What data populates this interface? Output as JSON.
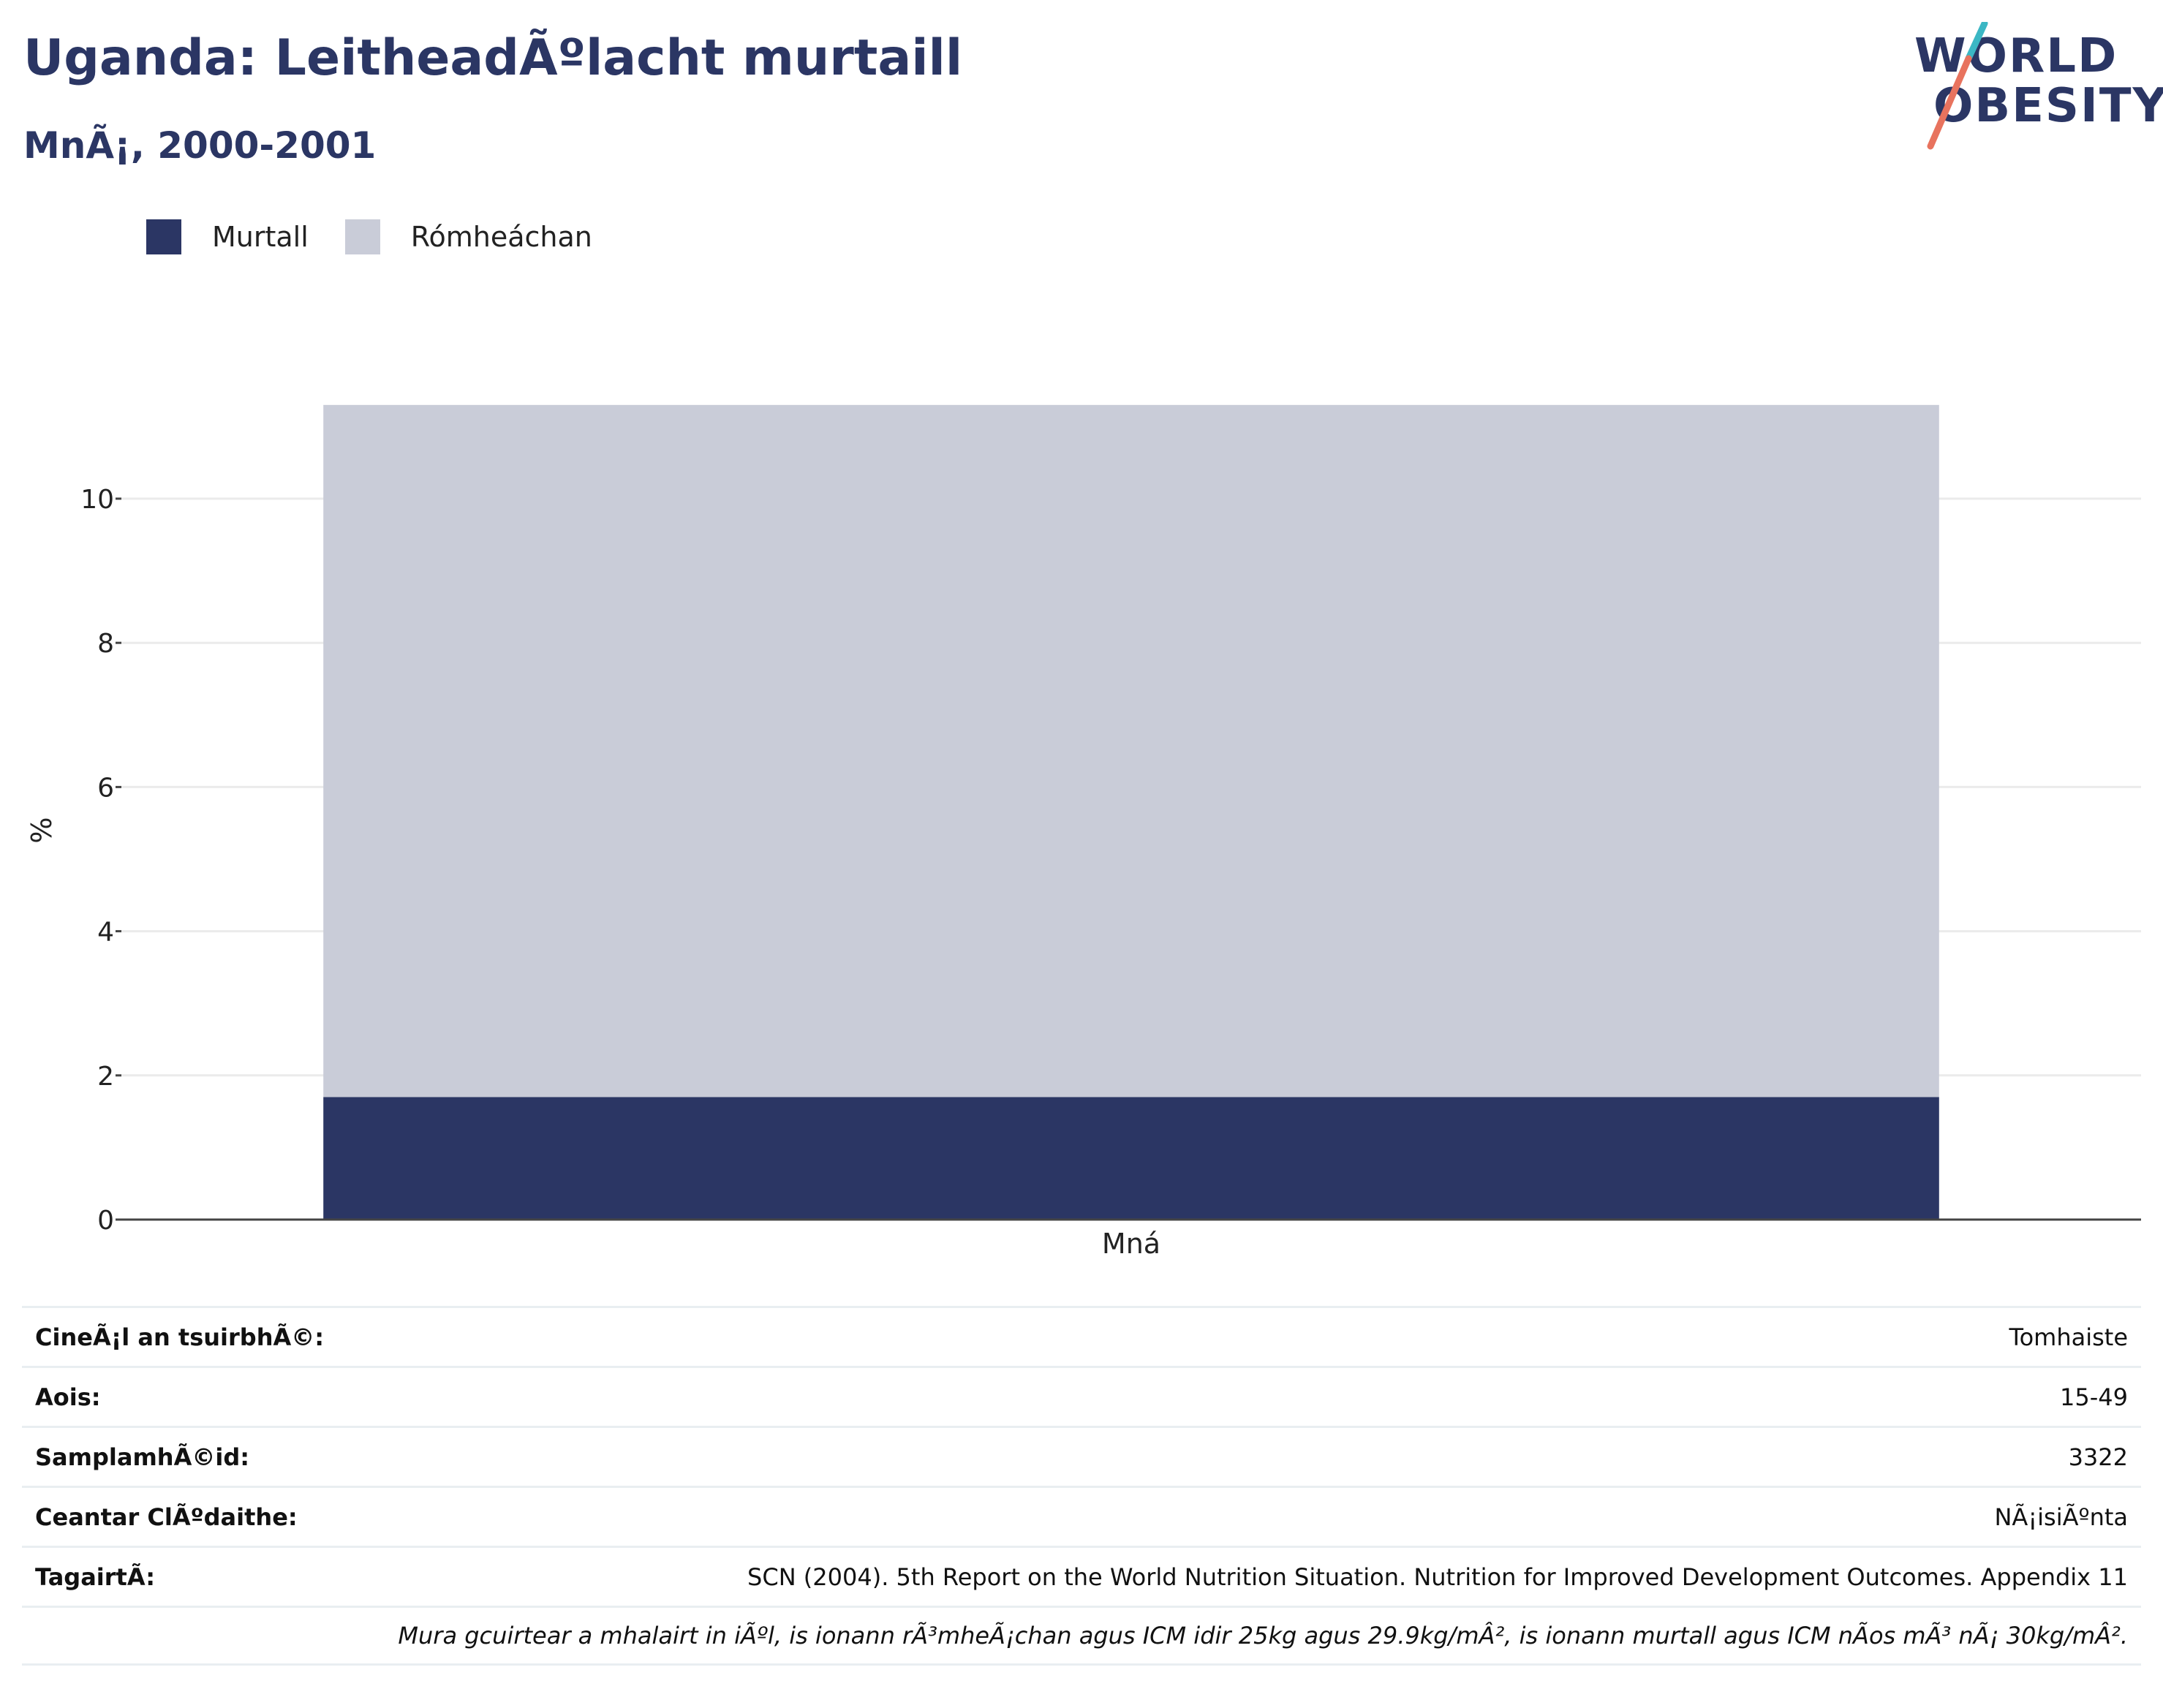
{
  "header": {
    "title": "Uganda: LeitheadÃºlacht murtaill",
    "subtitle": "MnÃ¡, 2000-2001"
  },
  "logo": {
    "line1": "WORLD",
    "line2": "OBESITY"
  },
  "colors": {
    "obese": "#2b3664",
    "overweight": "#c9ccd8",
    "text": "#2b3664"
  },
  "chart_data": {
    "type": "bar",
    "stacked": true,
    "categories": [
      "Mná"
    ],
    "series": [
      {
        "name": "Murtall",
        "values": [
          1.7
        ],
        "color": "#2b3664"
      },
      {
        "name": "Rómheáchan",
        "values": [
          9.6
        ],
        "color": "#c9ccd8"
      }
    ],
    "ylabel": "%",
    "xlabel": "",
    "ylim": [
      0,
      11.3
    ],
    "yticks": [
      0,
      2,
      4,
      6,
      8,
      10
    ],
    "grid": true,
    "legend": "top-left"
  },
  "info": {
    "rows": [
      {
        "label": "CineÃ¡l an tsuirbhÃ©:",
        "value": "Tomhaiste"
      },
      {
        "label": "Aois:",
        "value": "15-49"
      },
      {
        "label": "SamplamhÃ©id:",
        "value": "3322"
      },
      {
        "label": "Ceantar ClÃºdaithe:",
        "value": "NÃ¡isiÃºnta"
      },
      {
        "label": "TagairtÃ:",
        "value": "SCN (2004). 5th Report on the World Nutrition Situation. Nutrition for Improved Development Outcomes. Appendix 11"
      }
    ],
    "note": "Mura gcuirtear a mhalairt in iÃºl, is ionann rÃ³mheÃ¡chan agus ICM idir 25kg agus 29.9kg/mÂ², is ionann murtall agus ICM nÃos mÃ³ nÃ¡ 30kg/mÂ²."
  }
}
